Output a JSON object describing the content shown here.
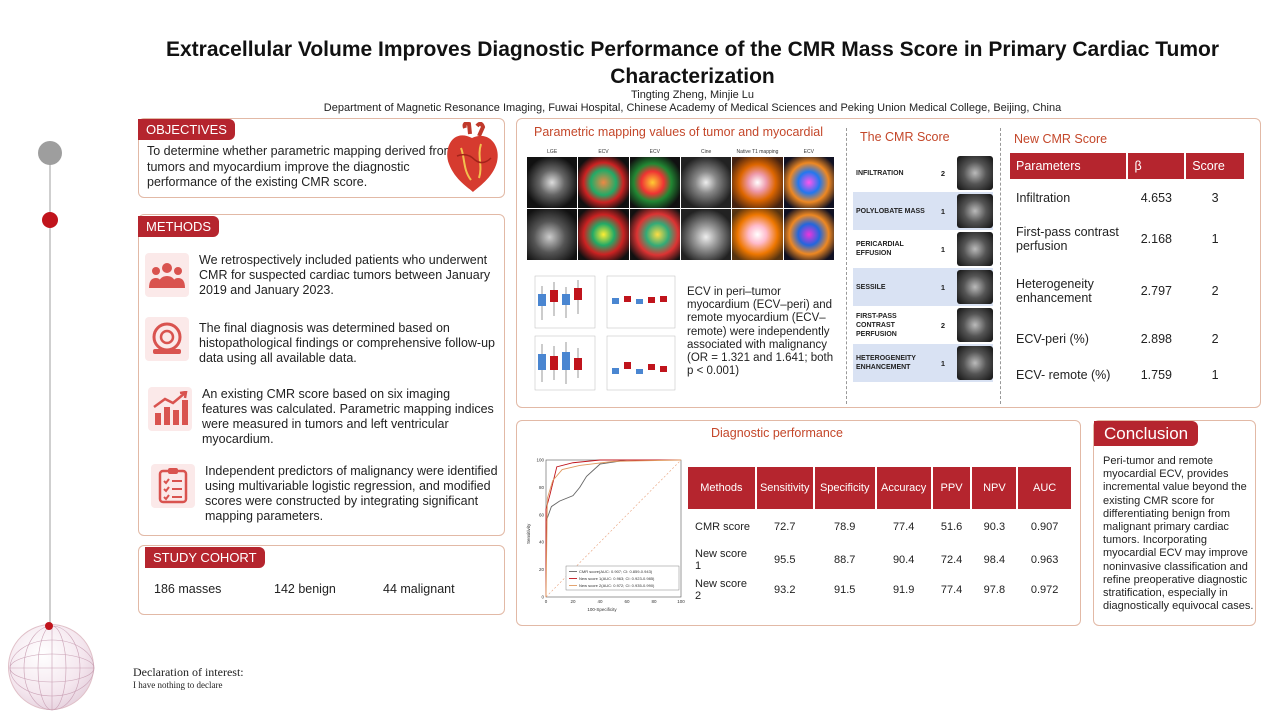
{
  "header": {
    "title": "Extracellular Volume Improves Diagnostic Performance of the CMR Mass Score in Primary Cardiac Tumor Characterization",
    "authors": "Tingting Zheng, Minjie Lu",
    "affiliation": "Department of Magnetic Resonance Imaging, Fuwai Hospital, Chinese Academy of Medical Sciences and Peking Union Medical College, Beijing, China"
  },
  "objectives": {
    "label": "OBJECTIVES",
    "text": "To determine whether parametric mapping derived from tumors and myocardium improve the diagnostic performance of the existing CMR score.",
    "icon": "heart-icon"
  },
  "methods": {
    "label": "METHODS",
    "items": [
      {
        "icon": "patients-icon",
        "text": "We retrospectively included patients who underwent CMR for suspected cardiac tumors between January 2019 and January 2023."
      },
      {
        "icon": "mri-scanner-icon",
        "text": "The final diagnosis was determined based on histopathological findings or comprehensive follow-up data using all available data."
      },
      {
        "icon": "bar-chart-icon",
        "text": "An existing CMR score based on six imaging features was calculated. Parametric mapping indices were measured in tumors and left ventricular myocardium."
      },
      {
        "icon": "checklist-icon",
        "text": "Independent predictors of malignancy were identified using multivariable logistic regression, and modified scores were constructed by integrating significant mapping parameters."
      }
    ]
  },
  "cohort": {
    "label": "STUDY COHORT",
    "masses": "186 masses",
    "benign": "142 benign",
    "malignant": "44 malignant"
  },
  "mapping": {
    "title": "Parametric mapping values of tumor and myocardial",
    "columns": [
      "LGE",
      "ECV",
      "ECV",
      "Cine",
      "Native T1 mapping",
      "ECV"
    ],
    "ecv_text": "ECV in peri–tumor myocardium (ECV–peri) and remote myocardium (ECV–remote) were independently associated with malignancy (OR = 1.321 and 1.641; both p < 0.001)"
  },
  "cmr_score": {
    "title": "The CMR Score",
    "rows": [
      {
        "feature": "INFILTRATION",
        "score": "2"
      },
      {
        "feature": "POLYLOBATE MASS",
        "score": "1"
      },
      {
        "feature": "PERICARDIAL EFFUSION",
        "score": "1"
      },
      {
        "feature": "SESSILE",
        "score": "1"
      },
      {
        "feature": "FIRST-PASS CONTRAST PERFUSION",
        "score": "2"
      },
      {
        "feature": "HETEROGENEITY ENHANCEMENT",
        "score": "1"
      }
    ]
  },
  "new_score": {
    "title": "New CMR Score",
    "headers": [
      "Parameters",
      "β",
      "Score"
    ],
    "rows": [
      {
        "param": "Infiltration",
        "beta": "4.653",
        "score": "3"
      },
      {
        "param": "First-pass contrast perfusion",
        "beta": "2.168",
        "score": "1"
      },
      {
        "param": "Heterogeneity enhancement",
        "beta": "2.797",
        "score": "2"
      },
      {
        "param": "ECV-peri (%)",
        "beta": "2.898",
        "score": "2"
      },
      {
        "param": "ECV- remote (%)",
        "beta": "1.759",
        "score": "1"
      }
    ]
  },
  "diagnostic": {
    "title": "Diagnostic performance",
    "headers": [
      "Methods",
      "Sensitivity",
      "Specificity",
      "Accuracy",
      "PPV",
      "NPV",
      "AUC"
    ],
    "rows": [
      [
        "CMR score",
        "72.7",
        "78.9",
        "77.4",
        "51.6",
        "90.3",
        "0.907"
      ],
      [
        "New score 1",
        "95.5",
        "88.7",
        "90.4",
        "72.4",
        "98.4",
        "0.963"
      ],
      [
        "New score 2",
        "93.2",
        "91.5",
        "91.9",
        "77.4",
        "97.8",
        "0.972"
      ]
    ]
  },
  "chart_data": [
    {
      "type": "line",
      "xlabel": "100-Specificity",
      "ylabel": "Sensitivity",
      "xlim": [
        0,
        100
      ],
      "ylim": [
        0,
        100
      ],
      "x_ticks": [
        "0",
        "20",
        "40",
        "60",
        "80",
        "100"
      ],
      "y_ticks": [
        "0",
        "20",
        "40",
        "60",
        "80",
        "100"
      ],
      "legend": "bottom-right",
      "series": [
        {
          "name": "CMR score(AUC: 0.907; CI: 0.859-0.943)",
          "color": "#666666",
          "points": [
            [
              0,
              0
            ],
            [
              0,
              55
            ],
            [
              4,
              66
            ],
            [
              10,
              70
            ],
            [
              20,
              74
            ],
            [
              25,
              80
            ],
            [
              30,
              88
            ],
            [
              40,
              97
            ],
            [
              60,
              100
            ],
            [
              100,
              100
            ]
          ]
        },
        {
          "name": "New score 1(AUC: 0.963; CI: 0.923-0.985)",
          "color": "#c0141c",
          "points": [
            [
              0,
              0
            ],
            [
              0,
              64
            ],
            [
              3,
              75
            ],
            [
              8,
              95
            ],
            [
              20,
              98
            ],
            [
              40,
              100
            ],
            [
              100,
              100
            ]
          ]
        },
        {
          "name": "New score 2(AUC: 0.972; CI: 0.935-0.990)",
          "color": "#e09a60",
          "points": [
            [
              0,
              0
            ],
            [
              1,
              72
            ],
            [
              5,
              85
            ],
            [
              12,
              93
            ],
            [
              25,
              96
            ],
            [
              50,
              99
            ],
            [
              100,
              100
            ]
          ]
        }
      ]
    }
  ],
  "conclusion": {
    "label": "Conclusion",
    "text": "Peri-tumor and remote myocardial ECV, provides incremental value beyond the existing CMR score for differentiating benign from malignant primary cardiac tumors. Incorporating myocardial ECV may improve noninvasive classification and refine preoperative diagnostic stratification, especially in diagnostically equivocal cases."
  },
  "declaration": {
    "title": "Declaration of interest:",
    "text": "I have nothing to declare"
  }
}
